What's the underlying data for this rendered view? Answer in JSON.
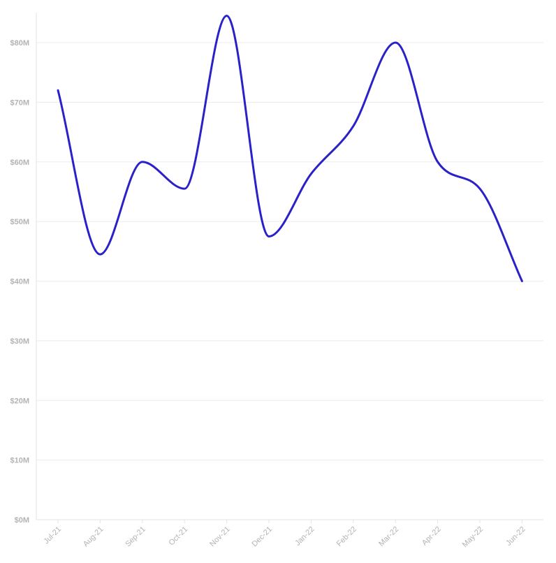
{
  "chart_data": {
    "type": "line",
    "title": "",
    "xlabel": "",
    "ylabel": "",
    "categories": [
      "Jul-21",
      "Aug-21",
      "Sep-21",
      "Oct-21",
      "Nov-21",
      "Dec-21",
      "Jan-22",
      "Feb-22",
      "Mar-22",
      "Apr-22",
      "May-22",
      "Jun-22"
    ],
    "series": [
      {
        "values": [
          72,
          44.5,
          60,
          55.5,
          84.5,
          47.5,
          58,
          66,
          80,
          60,
          55.5,
          40
        ]
      }
    ],
    "value_unit": "millions of dollars",
    "ylim": [
      0,
      85
    ],
    "yticks": [
      0,
      10,
      20,
      30,
      40,
      50,
      60,
      70,
      80
    ],
    "ytick_labels": [
      "$0M",
      "$10M",
      "$20M",
      "$30M",
      "$40M",
      "$50M",
      "$60M",
      "$70M",
      "$80M"
    ],
    "grid": true,
    "curve": "smooth",
    "colors": {
      "line": "#2b21c9",
      "grid": "#ececec",
      "tick_text": "#b3b3b3"
    }
  }
}
